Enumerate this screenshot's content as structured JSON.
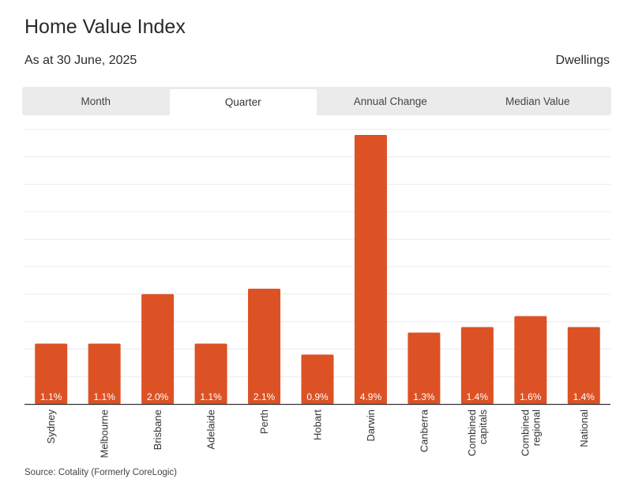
{
  "header": {
    "title": "Home Value Index",
    "subtitle": "As at 30 June, 2025",
    "dwellings_label": "Dwellings"
  },
  "tabs": [
    {
      "label": "Month",
      "active": false
    },
    {
      "label": "Quarter",
      "active": true
    },
    {
      "label": "Annual Change",
      "active": false
    },
    {
      "label": "Median Value",
      "active": false
    }
  ],
  "chart_data": {
    "type": "bar",
    "categories": [
      "Sydney",
      "Melbourne",
      "Brisbane",
      "Adelaide",
      "Perth",
      "Hobart",
      "Darwin",
      "Canberra",
      "Combined capitals",
      "Combined regional",
      "National"
    ],
    "values": [
      1.1,
      1.1,
      2.0,
      1.1,
      2.1,
      0.9,
      4.9,
      1.3,
      1.4,
      1.6,
      1.4
    ],
    "data_labels": [
      "1.1%",
      "1.1%",
      "2.0%",
      "1.1%",
      "2.1%",
      "0.9%",
      "4.9%",
      "1.3%",
      "1.4%",
      "1.6%",
      "1.4%"
    ],
    "ylim": [
      0,
      5
    ],
    "grid": true,
    "bar_color": "#dc5225",
    "label_color": "#ffffff"
  },
  "footer": {
    "source": "Source: Cotality (Formerly CoreLogic)"
  }
}
